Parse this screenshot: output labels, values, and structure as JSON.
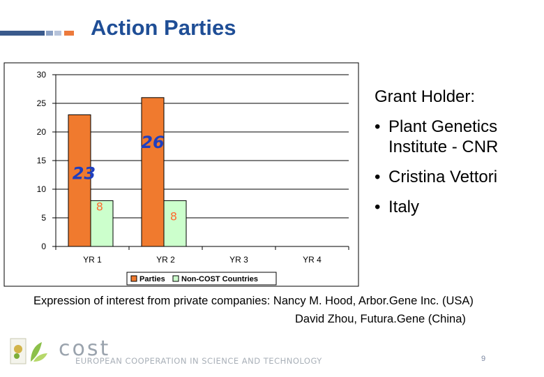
{
  "slide": {
    "title": "Action Parties",
    "page_number": "9",
    "colors": {
      "title": "#1f4e96",
      "deco_bar": "#3a5a8c",
      "deco_accent": "#ec7a3c"
    }
  },
  "chart_data": {
    "type": "bar",
    "categories": [
      "YR 1",
      "YR 2",
      "YR 3",
      "YR 4"
    ],
    "series": [
      {
        "name": "Parties",
        "values": [
          23,
          26,
          null,
          null
        ],
        "color": "#f07a2e"
      },
      {
        "name": "Non-COST Countries",
        "values": [
          8,
          8,
          null,
          null
        ],
        "color": "#ccffcc"
      }
    ],
    "data_labels": {
      "Parties": [
        "23",
        "26",
        "",
        ""
      ],
      "Non-COST Countries": [
        "8",
        "8",
        "",
        ""
      ]
    },
    "y_ticks": [
      0,
      5,
      10,
      15,
      20,
      25,
      30
    ],
    "ylim": [
      0,
      30
    ],
    "grid": true,
    "legend_position": "bottom",
    "title": "",
    "xlabel": "",
    "ylabel": ""
  },
  "grant": {
    "title": "Grant Holder:",
    "bullets": [
      "Plant Genetics Institute - CNR",
      "Cristina Vettori",
      "Italy"
    ],
    "bullet_symbol": "•"
  },
  "expression": {
    "line1": "Expression of interest from private companies: Nancy M. Hood, Arbor.Gene Inc. (USA)",
    "line2": "David Zhou, Futura.Gene (China)"
  },
  "footer": {
    "brand": "cost",
    "tagline": "EUROPEAN COOPERATION IN SCIENCE AND TECHNOLOGY"
  }
}
